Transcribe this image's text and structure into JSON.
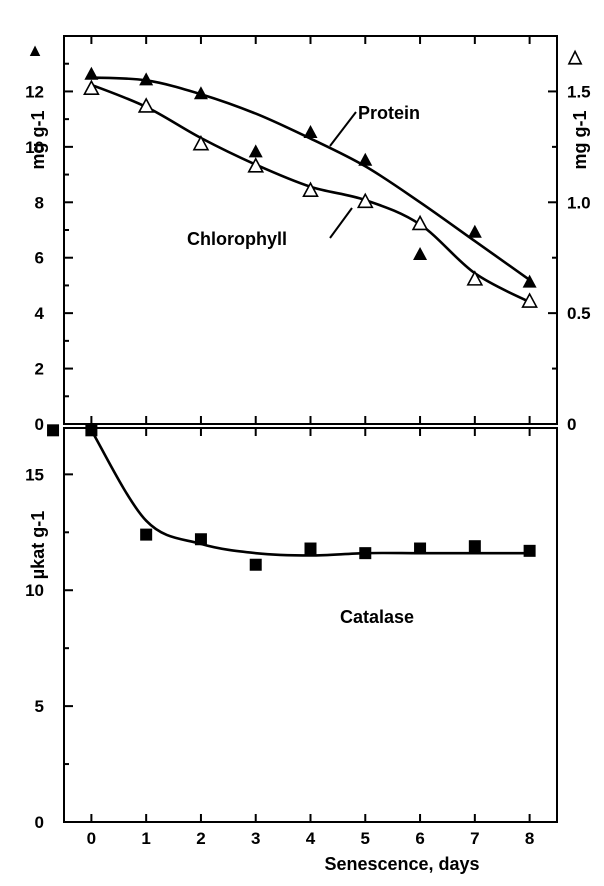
{
  "chart_data": [
    {
      "type": "scatter",
      "panel": "top",
      "xlabel": "",
      "ylabel_left": "mg g-1",
      "ylabel_right": "mg g-1",
      "left_axis_marker": "▲",
      "right_axis_marker": "△",
      "xlim": [
        -0.5,
        8.5
      ],
      "ylim_left": [
        0,
        14
      ],
      "ylim_right": [
        0,
        1.75
      ],
      "yticks_left": [
        0,
        2,
        4,
        6,
        8,
        10,
        12
      ],
      "yticks_right": [
        0,
        0.5,
        1.0,
        1.5
      ],
      "ytick_labels_right": [
        "0",
        "0.5",
        "1.0",
        "1.5"
      ],
      "series": [
        {
          "name": "Protein",
          "axis": "left",
          "marker": "filled-triangle",
          "x": [
            0,
            1,
            2,
            3,
            4,
            5,
            6,
            7,
            8
          ],
          "y": [
            12.6,
            12.4,
            11.9,
            9.8,
            10.5,
            9.5,
            6.1,
            6.9,
            5.1
          ],
          "fit": [
            12.5,
            12.4,
            11.9,
            11.2,
            10.3,
            9.3,
            8.0,
            6.6,
            5.2
          ]
        },
        {
          "name": "Chlorophyll",
          "axis": "right",
          "marker": "open-triangle",
          "x": [
            0,
            1,
            2,
            3,
            4,
            5,
            6,
            7,
            8
          ],
          "y": [
            1.51,
            1.43,
            1.26,
            1.16,
            1.05,
            1.0,
            0.9,
            0.65,
            0.55
          ],
          "fit": [
            1.53,
            1.43,
            1.29,
            1.17,
            1.07,
            1.01,
            0.9,
            0.68,
            0.55
          ]
        }
      ],
      "annotations": [
        "Protein",
        "Chlorophyll"
      ]
    },
    {
      "type": "scatter",
      "panel": "bottom",
      "xlabel": "Senescence, days",
      "ylabel": "µkat g-1",
      "xlim": [
        -0.5,
        8.5
      ],
      "ylim": [
        0,
        17
      ],
      "xticks": [
        0,
        1,
        2,
        3,
        4,
        5,
        6,
        7,
        8
      ],
      "yticks": [
        0,
        5,
        10,
        15
      ],
      "series": [
        {
          "name": "Catalase",
          "axis": "left",
          "marker": "filled-square",
          "x": [
            0,
            1,
            2,
            3,
            4,
            5,
            6,
            7,
            8
          ],
          "y": [
            16.9,
            12.4,
            12.2,
            11.1,
            11.8,
            11.6,
            11.8,
            11.9,
            11.7
          ],
          "fit": [
            16.9,
            13.0,
            12.0,
            11.6,
            11.5,
            11.6,
            11.6,
            11.6,
            11.6
          ]
        }
      ],
      "outlier_points": [
        {
          "x": -0.7,
          "y": 16.9
        }
      ],
      "annotations": [
        "Catalase"
      ]
    }
  ]
}
